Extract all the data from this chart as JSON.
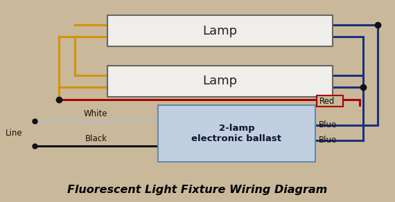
{
  "bg_color": "#c9b99a",
  "title": "Fluorescent Light Fixture Wiring Diagram",
  "title_color": "#000000",
  "title_fontsize": 11.5,
  "lamp_text": "Lamp",
  "ballast_text": "2-lamp\nelectronic ballast",
  "lamp_box_color": "#f0eeea",
  "ballast_box_color": "#c0d0e0",
  "wire_lw": 2.2,
  "yellow_color": "#d4920a",
  "red_color": "#aa0000",
  "blue_color": "#1a3080",
  "white_color": "#bbbbbb",
  "black_color": "#111111",
  "dot_size": 5,
  "label_fontsize": 8.5
}
